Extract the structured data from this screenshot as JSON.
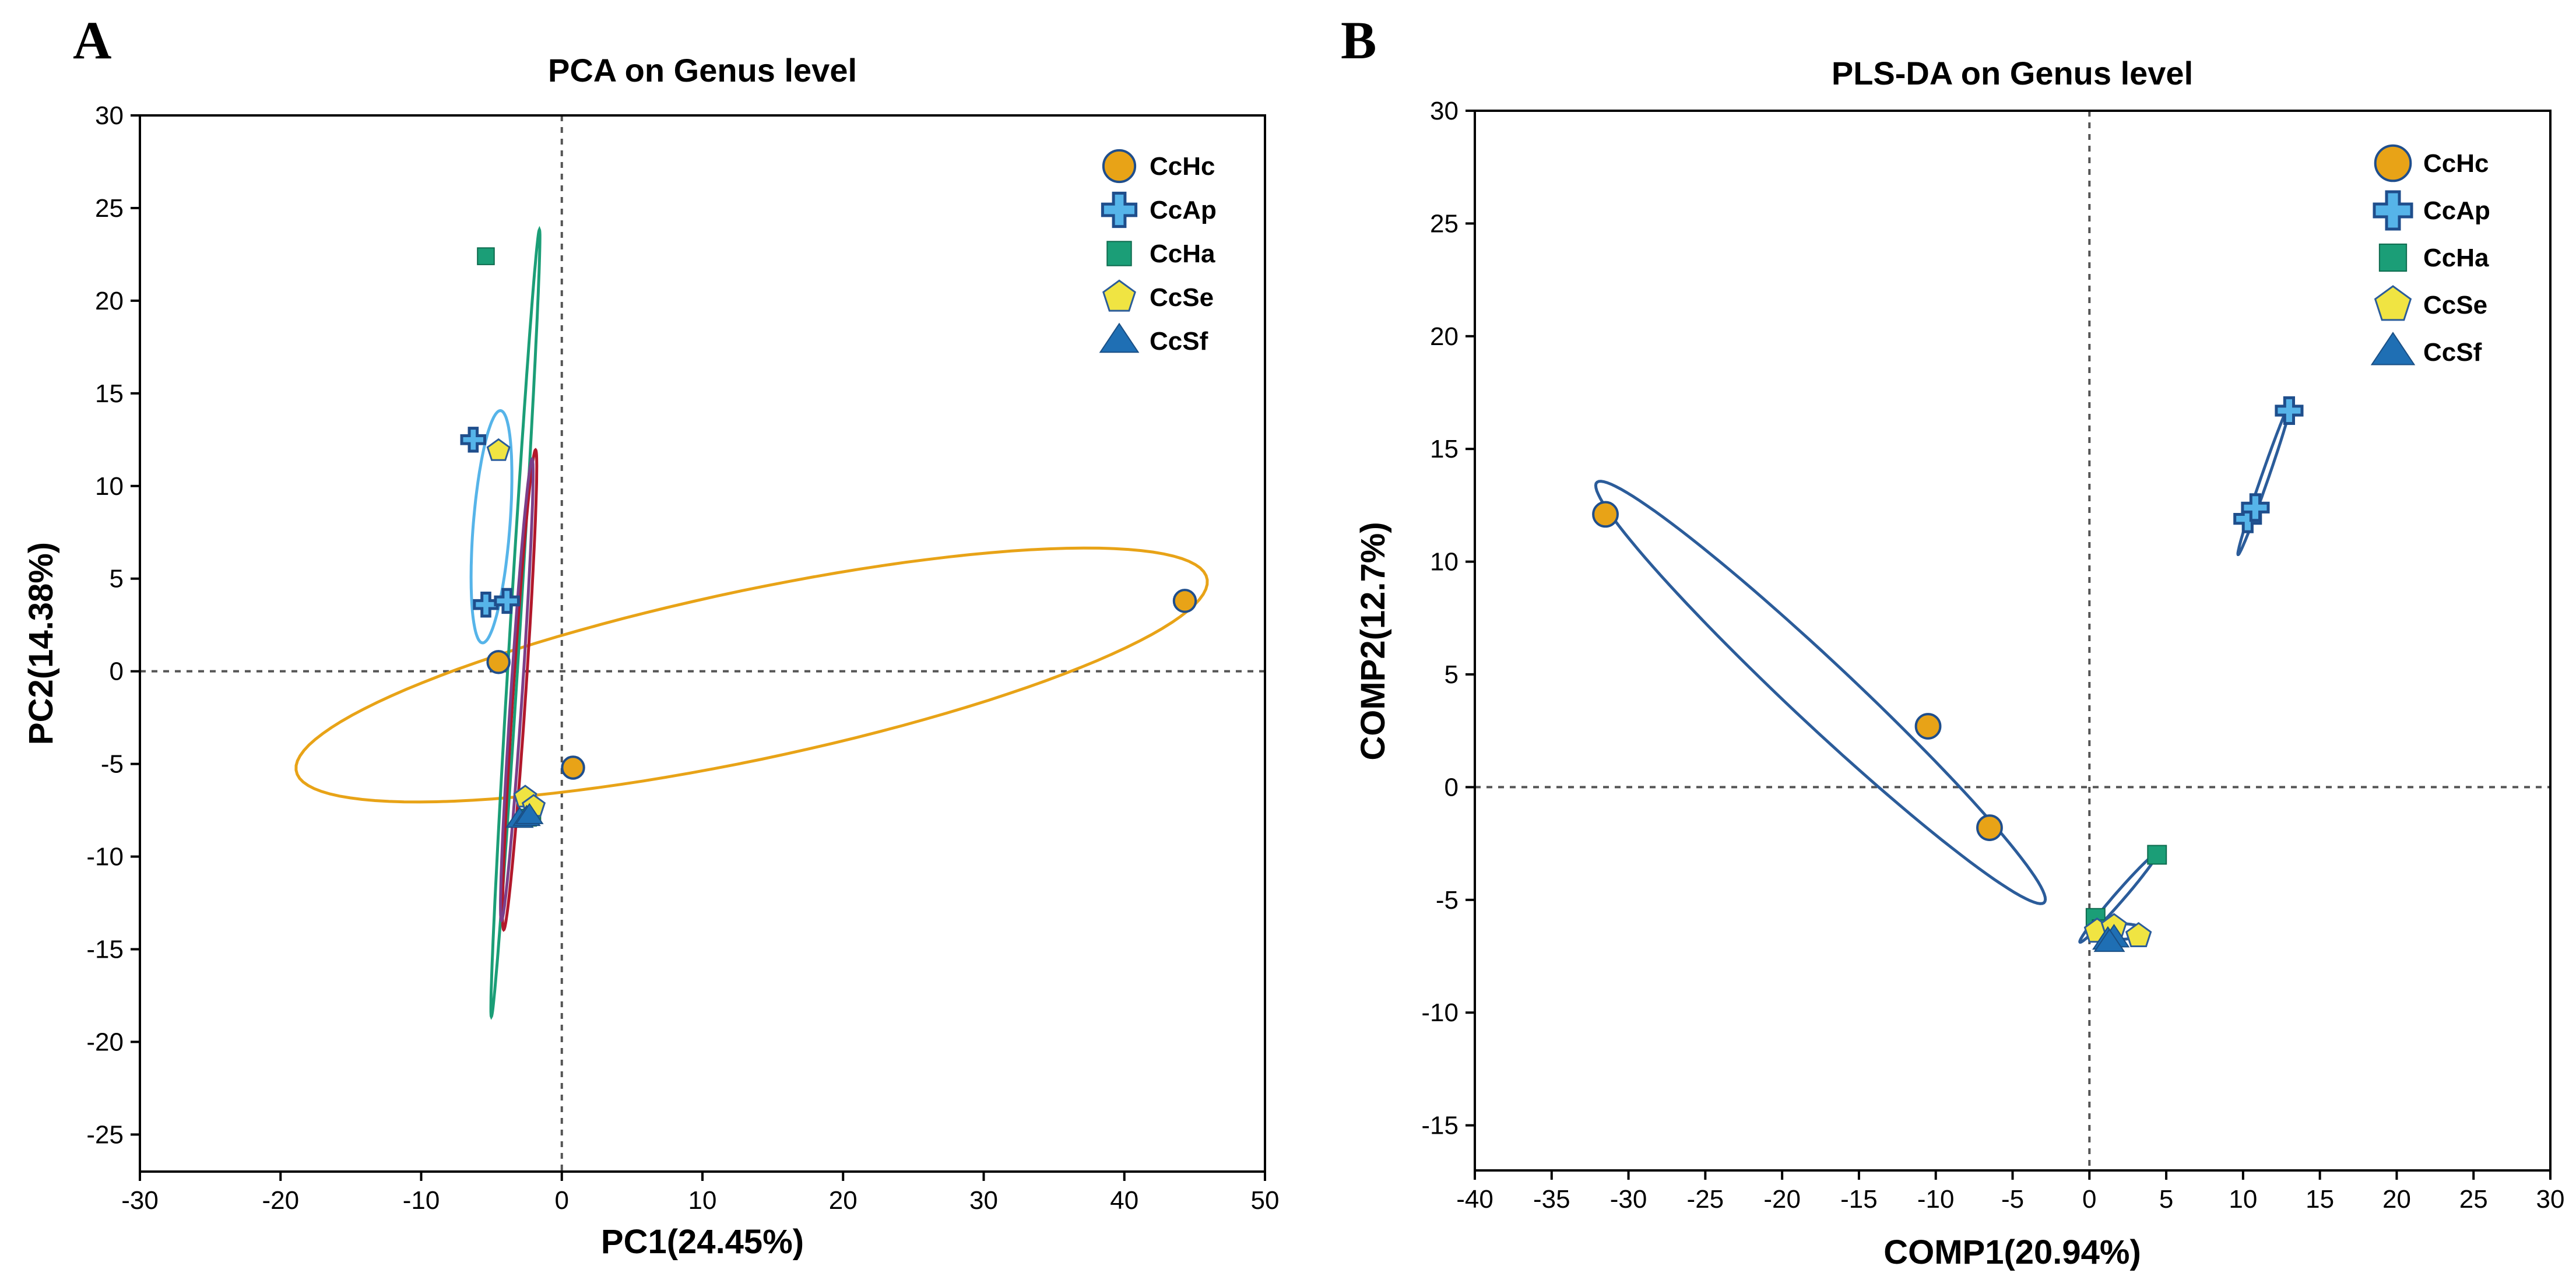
{
  "chart_data": [
    {
      "type": "scatter",
      "panel": "A",
      "title": "PCA on Genus level",
      "xlabel": "PC1(24.45%)",
      "ylabel": "PC2(14.38%)",
      "xlim": [
        -30,
        50
      ],
      "ylim": [
        -27,
        30
      ],
      "xticks": [
        -30,
        -20,
        -10,
        0,
        10,
        20,
        30,
        40,
        50
      ],
      "yticks": [
        -25,
        -20,
        -15,
        -10,
        -5,
        0,
        5,
        10,
        15,
        20,
        25,
        30
      ],
      "reference_lines": {
        "x": 0,
        "y": 0,
        "style": "dotted"
      },
      "legend_position": "top-right",
      "series": [
        {
          "name": "CcHc",
          "marker": "circle",
          "color": "#E8A317",
          "points": [
            [
              44.3,
              3.8
            ],
            [
              -4.5,
              0.5
            ],
            [
              0.8,
              -5.2
            ]
          ],
          "ellipse": {
            "center": [
              13.5,
              -0.2
            ],
            "rx": 32.8,
            "ry": 4.6,
            "angle": 9,
            "color": "#E8A317"
          }
        },
        {
          "name": "CcAp",
          "marker": "cross",
          "color": "#56B4E9",
          "points": [
            [
              -6.3,
              12.5
            ],
            [
              -5.4,
              3.6
            ],
            [
              -3.9,
              3.8
            ]
          ],
          "ellipse": {
            "center": [
              -5.0,
              7.8
            ],
            "rx": 6.3,
            "ry": 1.3,
            "angle": 84,
            "color": "#56B4E9"
          }
        },
        {
          "name": "CcHa",
          "marker": "square",
          "color": "#1B9E77",
          "points": [
            [
              -5.4,
              22.4
            ],
            [
              -2.1,
              -7.6
            ],
            [
              -2.4,
              -7.9
            ]
          ],
          "ellipse": {
            "center": [
              -3.3,
              2.6
            ],
            "rx": 21.3,
            "ry": 0.35,
            "angle": 85.4,
            "color": "#1B9E77"
          }
        },
        {
          "name": "CcSe",
          "marker": "pentagon",
          "color": "#F0E442",
          "points": [
            [
              -4.5,
              11.9
            ],
            [
              -2.6,
              -6.8
            ],
            [
              -2.0,
              -7.3
            ]
          ],
          "ellipse": {
            "center": [
              -3.0,
              -1.0
            ],
            "rx": 13.0,
            "ry": 0.45,
            "angle": 85,
            "color": "#B2182B"
          }
        },
        {
          "name": "CcSf",
          "marker": "triangle",
          "color": "#1F6FB4",
          "points": [
            [
              -3.0,
              -8.0
            ],
            [
              -2.5,
              -7.9
            ],
            [
              -2.3,
              -7.8
            ]
          ],
          "ellipse": {
            "center": [
              -3.2,
              -1.0
            ],
            "rx": 12.5,
            "ry": 0.4,
            "angle": 85,
            "color": "#7B3F8A"
          }
        }
      ]
    },
    {
      "type": "scatter",
      "panel": "B",
      "title": "PLS-DA on Genus level",
      "xlabel": "COMP1(20.94%)",
      "ylabel": "COMP2(12.7%)",
      "xlim": [
        -40,
        30
      ],
      "ylim": [
        -17,
        30
      ],
      "xticks": [
        -40,
        -35,
        -30,
        -25,
        -20,
        -15,
        -10,
        -5,
        0,
        5,
        10,
        15,
        20,
        25,
        30
      ],
      "yticks": [
        -15,
        -10,
        -5,
        0,
        5,
        10,
        15,
        20,
        25,
        30
      ],
      "reference_lines": {
        "x": 0,
        "y": 0,
        "style": "dotted"
      },
      "legend_position": "top-right",
      "series": [
        {
          "name": "CcHc",
          "marker": "circle",
          "color": "#E8A317",
          "points": [
            [
              -31.5,
              12.1
            ],
            [
              -10.5,
              2.7
            ],
            [
              -6.5,
              -1.8
            ]
          ],
          "ellipse": {
            "center": [
              -17.5,
              4.2
            ],
            "rx": 17.3,
            "ry": 1.6,
            "angle": -32.4,
            "color": "#2B5C9A"
          }
        },
        {
          "name": "CcAp",
          "marker": "cross",
          "color": "#56B4E9",
          "points": [
            [
              13.0,
              16.7
            ],
            [
              10.3,
              11.9
            ],
            [
              10.8,
              12.4
            ]
          ],
          "ellipse": {
            "center": [
              11.4,
              13.7
            ],
            "rx": 3.8,
            "ry": 0.22,
            "angle": 63,
            "color": "#2B5C9A"
          }
        },
        {
          "name": "CcHa",
          "marker": "square",
          "color": "#1B9E77",
          "points": [
            [
              4.4,
              -3.0
            ],
            [
              0.4,
              -5.8
            ],
            [
              0.8,
              -6.3
            ]
          ],
          "ellipse": {
            "center": [
              1.9,
              -4.9
            ],
            "rx": 3.2,
            "ry": 0.25,
            "angle": 38,
            "color": "#2B5C9A"
          }
        },
        {
          "name": "CcSe",
          "marker": "pentagon",
          "color": "#F0E442",
          "points": [
            [
              0.5,
              -6.4
            ],
            [
              1.6,
              -6.2
            ],
            [
              3.2,
              -6.6
            ]
          ],
          "ellipse": {
            "center": [
              1.9,
              -6.4
            ],
            "rx": 1.8,
            "ry": 0.35,
            "angle": 0,
            "color": "#2B5C9A"
          }
        },
        {
          "name": "CcSf",
          "marker": "triangle",
          "color": "#1F6FB4",
          "points": [
            [
              1.2,
              -6.8
            ],
            [
              1.6,
              -6.7
            ],
            [
              1.3,
              -6.9
            ]
          ],
          "ellipse": {
            "center": [
              1.4,
              -6.8
            ],
            "rx": 0.6,
            "ry": 0.2,
            "angle": 0,
            "color": "#2B5C9A"
          }
        }
      ]
    }
  ]
}
